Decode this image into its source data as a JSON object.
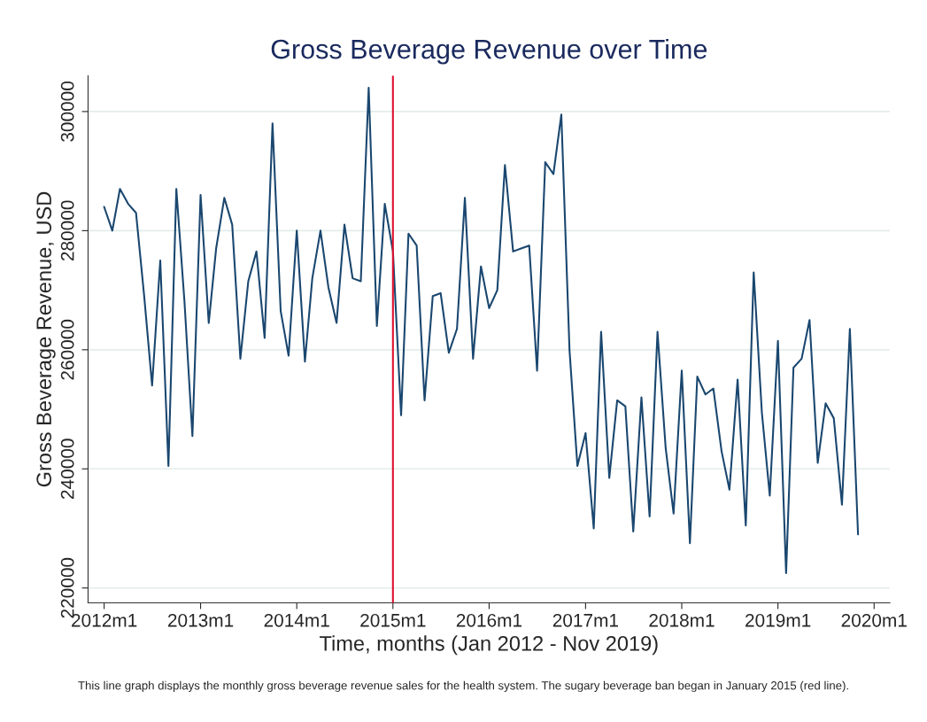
{
  "chart_data": {
    "type": "line",
    "title": "Gross Beverage Revenue over Time",
    "xlabel": "Time, months (Jan 2012 - Nov 2019)",
    "ylabel": "Gross Beverage Revenue, USD",
    "annotations": [
      "This line graph displays the monthly gross beverage revenue sales for the health system. The sugary beverage ban began in January 2015 (red line)."
    ],
    "x": [
      "2012-01",
      "2012-02",
      "2012-03",
      "2012-04",
      "2012-05",
      "2012-06",
      "2012-07",
      "2012-08",
      "2012-09",
      "2012-10",
      "2012-11",
      "2012-12",
      "2013-01",
      "2013-02",
      "2013-03",
      "2013-04",
      "2013-05",
      "2013-06",
      "2013-07",
      "2013-08",
      "2013-09",
      "2013-10",
      "2013-11",
      "2013-12",
      "2014-01",
      "2014-02",
      "2014-03",
      "2014-04",
      "2014-05",
      "2014-06",
      "2014-07",
      "2014-08",
      "2014-09",
      "2014-10",
      "2014-11",
      "2014-12",
      "2015-01",
      "2015-02",
      "2015-03",
      "2015-04",
      "2015-05",
      "2015-06",
      "2015-07",
      "2015-08",
      "2015-09",
      "2015-10",
      "2015-11",
      "2015-12",
      "2016-01",
      "2016-02",
      "2016-03",
      "2016-04",
      "2016-05",
      "2016-06",
      "2016-07",
      "2016-08",
      "2016-09",
      "2016-10",
      "2016-11",
      "2016-12",
      "2017-01",
      "2017-02",
      "2017-03",
      "2017-04",
      "2017-05",
      "2017-06",
      "2017-07",
      "2017-08",
      "2017-09",
      "2017-10",
      "2017-11",
      "2017-12",
      "2018-01",
      "2018-02",
      "2018-03",
      "2018-04",
      "2018-05",
      "2018-06",
      "2018-07",
      "2018-08",
      "2018-09",
      "2018-10",
      "2018-11",
      "2018-12",
      "2019-01",
      "2019-02",
      "2019-03",
      "2019-04",
      "2019-05",
      "2019-06",
      "2019-07",
      "2019-08",
      "2019-09",
      "2019-10",
      "2019-11"
    ],
    "series": [
      {
        "color": "#1a476f",
        "values": [
          284000,
          280000,
          287000,
          284500,
          283000,
          269000,
          254000,
          275000,
          240500,
          287000,
          268000,
          245500,
          286000,
          264500,
          277000,
          285500,
          281000,
          258500,
          271500,
          276500,
          262000,
          298000,
          266500,
          259000,
          280000,
          258000,
          272000,
          280000,
          270500,
          264500,
          281000,
          272000,
          271500,
          304000,
          264000,
          284500,
          276500,
          249000,
          279500,
          277500,
          251500,
          269000,
          269500,
          259500,
          263500,
          285500,
          258500,
          274000,
          267000,
          270000,
          291000,
          276500,
          277000,
          277500,
          256500,
          291500,
          289500,
          299500,
          260000,
          240500,
          246000,
          230000,
          263000,
          238500,
          251500,
          250500,
          229500,
          252000,
          232000,
          263000,
          243500,
          232500,
          256500,
          227500,
          255500,
          252500,
          253500,
          243000,
          236500,
          255000,
          230500,
          273000,
          249500,
          235500,
          261500,
          222500,
          257000,
          258500,
          265000,
          241000,
          251000,
          248500,
          234000,
          263500,
          229000
        ]
      }
    ],
    "xlim": [
      "2011-11",
      "2020-03"
    ],
    "xticks": [
      {
        "value": "2012-01",
        "label": "2012m1"
      },
      {
        "value": "2013-01",
        "label": "2013m1"
      },
      {
        "value": "2014-01",
        "label": "2014m1"
      },
      {
        "value": "2015-01",
        "label": "2015m1"
      },
      {
        "value": "2016-01",
        "label": "2016m1"
      },
      {
        "value": "2017-01",
        "label": "2017m1"
      },
      {
        "value": "2018-01",
        "label": "2018m1"
      },
      {
        "value": "2019-01",
        "label": "2019m1"
      },
      {
        "value": "2020-01",
        "label": "2020m1"
      }
    ],
    "ylim": [
      217500,
      306000
    ],
    "yticks": [
      220000,
      240000,
      260000,
      280000,
      300000
    ],
    "ref_lines": [
      {
        "axis": "x",
        "value": "2015-01",
        "color": "#e0102e"
      }
    ],
    "grid": "y",
    "legend": false,
    "marker": "none",
    "line_style": "solid"
  }
}
